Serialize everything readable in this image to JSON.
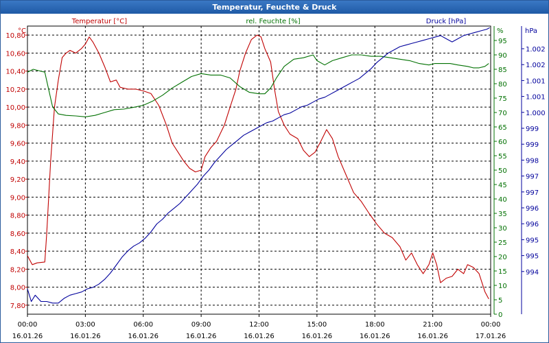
{
  "window": {
    "title": "Temperatur, Feuchte & Druck"
  },
  "colors": {
    "temperature": "#c00000",
    "humidity": "#007000",
    "pressure": "#00009c",
    "grid": "#000000"
  },
  "chart_data": {
    "type": "line",
    "title": "Temperatur, Feuchte & Druck",
    "x": {
      "tick_times": [
        "00:00",
        "03:00",
        "06:00",
        "09:00",
        "12:00",
        "15:00",
        "18:00",
        "21:00",
        "00:00"
      ],
      "tick_dates": [
        "16.01.26",
        "16.01.26",
        "16.01.26",
        "16.01.26",
        "16.01.26",
        "16.01.26",
        "16.01.26",
        "16.01.26",
        "17.01.26"
      ],
      "range_hours": [
        0,
        24
      ]
    },
    "axes": {
      "temperature": {
        "unit": "°C",
        "series_label": "Temperatur [°C]",
        "range": [
          7.7,
          10.9
        ],
        "ticks": [
          "10,80",
          "10,60",
          "10,40",
          "10,20",
          "10,00",
          "9,80",
          "9,60",
          "9,40",
          "9,20",
          "9,00",
          "8,80",
          "8,60",
          "8,40",
          "8,20",
          "8,00",
          "7,80"
        ]
      },
      "humidity": {
        "unit": "%",
        "series_label": "rel. Feuchte [%]",
        "range": [
          0,
          100
        ],
        "ticks": [
          "95",
          "90",
          "85",
          "80",
          "75",
          "70",
          "65",
          "60",
          "55",
          "50",
          "45",
          "40",
          "35",
          "30",
          "25",
          "20",
          "15",
          "10",
          "5",
          "0"
        ]
      },
      "pressure": {
        "unit": "hPa",
        "series_label": "Druck [hPa]",
        "range": [
          993.5,
          1002.6
        ],
        "ticks": [
          "1.002",
          "1.002",
          "1.001",
          "1.001",
          "1.000",
          "999",
          "999",
          "998",
          "997",
          "997",
          "996",
          "996",
          "995",
          "995",
          "994"
        ]
      }
    },
    "series": [
      {
        "name": "Temperatur [°C]",
        "axis": "temperature",
        "points": [
          [
            0,
            8.35
          ],
          [
            0.25,
            8.25
          ],
          [
            0.5,
            8.27
          ],
          [
            0.9,
            8.28
          ],
          [
            1.0,
            8.6
          ],
          [
            1.2,
            9.4
          ],
          [
            1.4,
            10.0
          ],
          [
            1.6,
            10.3
          ],
          [
            1.8,
            10.55
          ],
          [
            2.0,
            10.6
          ],
          [
            2.2,
            10.63
          ],
          [
            2.5,
            10.6
          ],
          [
            2.8,
            10.65
          ],
          [
            3.0,
            10.7
          ],
          [
            3.2,
            10.78
          ],
          [
            3.4,
            10.72
          ],
          [
            3.7,
            10.6
          ],
          [
            4.0,
            10.45
          ],
          [
            4.3,
            10.28
          ],
          [
            4.6,
            10.3
          ],
          [
            4.8,
            10.22
          ],
          [
            5.2,
            10.2
          ],
          [
            5.6,
            10.2
          ],
          [
            6.0,
            10.18
          ],
          [
            6.4,
            10.15
          ],
          [
            6.8,
            10.02
          ],
          [
            7.2,
            9.8
          ],
          [
            7.5,
            9.6
          ],
          [
            7.8,
            9.5
          ],
          [
            8.1,
            9.4
          ],
          [
            8.4,
            9.32
          ],
          [
            8.7,
            9.28
          ],
          [
            9.0,
            9.3
          ],
          [
            9.2,
            9.45
          ],
          [
            9.5,
            9.55
          ],
          [
            9.8,
            9.62
          ],
          [
            10.2,
            9.8
          ],
          [
            10.5,
            10.0
          ],
          [
            10.8,
            10.2
          ],
          [
            11.0,
            10.4
          ],
          [
            11.3,
            10.6
          ],
          [
            11.6,
            10.75
          ],
          [
            11.9,
            10.8
          ],
          [
            12.1,
            10.78
          ],
          [
            12.3,
            10.65
          ],
          [
            12.6,
            10.5
          ],
          [
            12.8,
            10.2
          ],
          [
            13.0,
            9.95
          ],
          [
            13.3,
            9.8
          ],
          [
            13.6,
            9.7
          ],
          [
            14.0,
            9.65
          ],
          [
            14.3,
            9.52
          ],
          [
            14.6,
            9.45
          ],
          [
            14.9,
            9.5
          ],
          [
            15.2,
            9.62
          ],
          [
            15.5,
            9.75
          ],
          [
            15.8,
            9.65
          ],
          [
            16.1,
            9.45
          ],
          [
            16.5,
            9.25
          ],
          [
            16.9,
            9.05
          ],
          [
            17.3,
            8.95
          ],
          [
            17.7,
            8.82
          ],
          [
            18.1,
            8.7
          ],
          [
            18.5,
            8.6
          ],
          [
            18.9,
            8.55
          ],
          [
            19.3,
            8.45
          ],
          [
            19.6,
            8.3
          ],
          [
            19.9,
            8.38
          ],
          [
            20.2,
            8.25
          ],
          [
            20.5,
            8.15
          ],
          [
            20.8,
            8.25
          ],
          [
            21.0,
            8.38
          ],
          [
            21.2,
            8.25
          ],
          [
            21.4,
            8.05
          ],
          [
            21.7,
            8.1
          ],
          [
            22.0,
            8.12
          ],
          [
            22.3,
            8.2
          ],
          [
            22.6,
            8.15
          ],
          [
            22.8,
            8.25
          ],
          [
            23.1,
            8.22
          ],
          [
            23.4,
            8.15
          ],
          [
            23.7,
            7.95
          ],
          [
            23.9,
            7.87
          ]
        ]
      },
      {
        "name": "rel. Feuchte [%]",
        "axis": "humidity",
        "points": [
          [
            0,
            84
          ],
          [
            0.3,
            85
          ],
          [
            0.6,
            84.5
          ],
          [
            0.9,
            84
          ],
          [
            1.1,
            78
          ],
          [
            1.3,
            72
          ],
          [
            1.6,
            69.5
          ],
          [
            2.0,
            69
          ],
          [
            2.5,
            68.8
          ],
          [
            3.0,
            68.5
          ],
          [
            3.5,
            69
          ],
          [
            4.0,
            70
          ],
          [
            4.5,
            71
          ],
          [
            5.0,
            71.2
          ],
          [
            5.5,
            71.8
          ],
          [
            6.0,
            72.5
          ],
          [
            6.5,
            74
          ],
          [
            7.0,
            76
          ],
          [
            7.5,
            78.5
          ],
          [
            8.0,
            80.5
          ],
          [
            8.5,
            82.5
          ],
          [
            9.0,
            83.5
          ],
          [
            9.5,
            83
          ],
          [
            10.0,
            83
          ],
          [
            10.5,
            82
          ],
          [
            11.0,
            79
          ],
          [
            11.5,
            77
          ],
          [
            12.0,
            76.5
          ],
          [
            12.3,
            76.5
          ],
          [
            12.6,
            78.5
          ],
          [
            12.9,
            82
          ],
          [
            13.3,
            86
          ],
          [
            13.8,
            88.5
          ],
          [
            14.3,
            89
          ],
          [
            14.8,
            90
          ],
          [
            15.0,
            88
          ],
          [
            15.4,
            86.5
          ],
          [
            15.8,
            88
          ],
          [
            16.3,
            89
          ],
          [
            16.8,
            90
          ],
          [
            17.3,
            90
          ],
          [
            17.8,
            89.5
          ],
          [
            18.3,
            89.5
          ],
          [
            18.8,
            89
          ],
          [
            19.3,
            88.5
          ],
          [
            19.8,
            88
          ],
          [
            20.3,
            87
          ],
          [
            20.8,
            86.5
          ],
          [
            21.1,
            87
          ],
          [
            21.5,
            87
          ],
          [
            21.9,
            87
          ],
          [
            22.3,
            86.5
          ],
          [
            22.8,
            86
          ],
          [
            23.1,
            85.5
          ],
          [
            23.4,
            85.5
          ],
          [
            23.7,
            86
          ],
          [
            23.9,
            87
          ]
        ]
      },
      {
        "name": "Druck [hPa]",
        "axis": "pressure",
        "points": [
          [
            0,
            994.3
          ],
          [
            0.2,
            993.9
          ],
          [
            0.4,
            994.1
          ],
          [
            0.7,
            993.9
          ],
          [
            1.0,
            993.9
          ],
          [
            1.3,
            993.85
          ],
          [
            1.6,
            993.85
          ],
          [
            1.9,
            994.0
          ],
          [
            2.2,
            994.1
          ],
          [
            2.5,
            994.15
          ],
          [
            2.8,
            994.2
          ],
          [
            3.1,
            994.3
          ],
          [
            3.4,
            994.35
          ],
          [
            3.7,
            994.45
          ],
          [
            4.0,
            994.6
          ],
          [
            4.3,
            994.8
          ],
          [
            4.6,
            995.05
          ],
          [
            4.9,
            995.3
          ],
          [
            5.2,
            995.5
          ],
          [
            5.5,
            995.65
          ],
          [
            5.8,
            995.75
          ],
          [
            6.1,
            995.9
          ],
          [
            6.4,
            996.1
          ],
          [
            6.7,
            996.35
          ],
          [
            7.0,
            996.5
          ],
          [
            7.3,
            996.7
          ],
          [
            7.6,
            996.85
          ],
          [
            7.9,
            997.0
          ],
          [
            8.2,
            997.2
          ],
          [
            8.5,
            997.4
          ],
          [
            8.8,
            997.6
          ],
          [
            9.1,
            997.85
          ],
          [
            9.4,
            998.05
          ],
          [
            9.7,
            998.3
          ],
          [
            10.0,
            998.5
          ],
          [
            10.3,
            998.7
          ],
          [
            10.6,
            998.85
          ],
          [
            10.9,
            999.0
          ],
          [
            11.2,
            999.15
          ],
          [
            11.5,
            999.25
          ],
          [
            11.8,
            999.35
          ],
          [
            12.1,
            999.45
          ],
          [
            12.4,
            999.55
          ],
          [
            12.7,
            999.6
          ],
          [
            13.0,
            999.7
          ],
          [
            13.3,
            999.8
          ],
          [
            13.6,
            999.85
          ],
          [
            13.9,
            999.95
          ],
          [
            14.2,
            1000.05
          ],
          [
            14.5,
            1000.1
          ],
          [
            14.8,
            1000.2
          ],
          [
            15.1,
            1000.3
          ],
          [
            15.4,
            1000.35
          ],
          [
            15.7,
            1000.45
          ],
          [
            16.0,
            1000.55
          ],
          [
            16.3,
            1000.65
          ],
          [
            16.6,
            1000.75
          ],
          [
            16.9,
            1000.85
          ],
          [
            17.2,
            1000.95
          ],
          [
            17.5,
            1001.1
          ],
          [
            17.8,
            1001.25
          ],
          [
            18.1,
            1001.45
          ],
          [
            18.4,
            1001.6
          ],
          [
            18.7,
            1001.75
          ],
          [
            19.0,
            1001.85
          ],
          [
            19.3,
            1001.95
          ],
          [
            19.6,
            1002.0
          ],
          [
            19.9,
            1002.05
          ],
          [
            20.2,
            1002.1
          ],
          [
            20.5,
            1002.15
          ],
          [
            20.8,
            1002.2
          ],
          [
            21.1,
            1002.25
          ],
          [
            21.4,
            1002.3
          ],
          [
            21.7,
            1002.2
          ],
          [
            22.0,
            1002.1
          ],
          [
            22.3,
            1002.2
          ],
          [
            22.6,
            1002.3
          ],
          [
            22.9,
            1002.35
          ],
          [
            23.2,
            1002.4
          ],
          [
            23.5,
            1002.45
          ],
          [
            23.8,
            1002.5
          ],
          [
            23.95,
            1002.55
          ]
        ]
      }
    ]
  }
}
